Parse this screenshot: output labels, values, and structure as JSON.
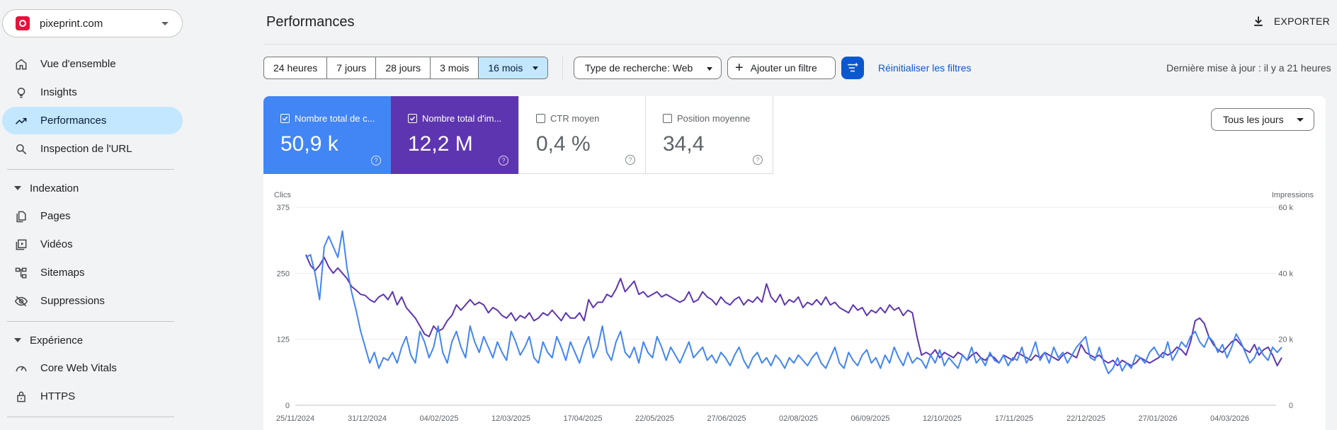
{
  "property": {
    "name": "pixeprint.com"
  },
  "nav": {
    "overview": "Vue d'ensemble",
    "insights": "Insights",
    "performance": "Performances",
    "url_inspection": "Inspection de l'URL",
    "indexing_section": "Indexation",
    "pages": "Pages",
    "videos": "Vidéos",
    "sitemaps": "Sitemaps",
    "removals": "Suppressions",
    "experience_section": "Expérience",
    "cwv": "Core Web Vitals",
    "https": "HTTPS"
  },
  "header": {
    "title": "Performances",
    "export_label": "EXPORTER"
  },
  "filters": {
    "ranges": [
      "24 heures",
      "7 jours",
      "28 jours",
      "3 mois",
      "16 mois"
    ],
    "selected_range": "16 mois",
    "search_type": "Type de recherche: Web",
    "add_filter": "Ajouter un filtre",
    "reset": "Réinitialiser les filtres",
    "last_update": "Dernière mise à jour : il y a 21 heures"
  },
  "metrics": {
    "clicks": {
      "label": "Nombre total de c...",
      "value": "50,9 k",
      "checked": true
    },
    "impressions": {
      "label": "Nombre total d'im...",
      "value": "12,2 M",
      "checked": true
    },
    "ctr": {
      "label": "CTR moyen",
      "value": "0,4 %",
      "checked": false
    },
    "position": {
      "label": "Position moyenne",
      "value": "34,4",
      "checked": false
    }
  },
  "granularity": {
    "selected": "Tous les jours"
  },
  "colors": {
    "clicks": "#4285f4",
    "impressions": "#5e35b1",
    "accent": "#0b57d0"
  },
  "chart_data": {
    "type": "line",
    "left_axis_label": "Clics",
    "right_axis_label": "Impressions",
    "left_ticks": [
      "0",
      "125",
      "250",
      "375"
    ],
    "right_ticks": [
      "0",
      "20 k",
      "40 k",
      "60 k"
    ],
    "ylim_left": [
      0,
      375
    ],
    "ylim_right": [
      0,
      60000
    ],
    "x_ticks": [
      "25/11/2024",
      "31/12/2024",
      "04/02/2025",
      "12/03/2025",
      "17/04/2025",
      "22/05/2025",
      "27/06/2025",
      "02/08/2025",
      "06/09/2025",
      "12/10/2025",
      "17/11/2025",
      "22/12/2025",
      "27/01/2026",
      "04/03/2026"
    ],
    "series": [
      {
        "name": "Clics",
        "color": "#4285f4",
        "axis": "left",
        "values": [
          280,
          285,
          250,
          200,
          300,
          320,
          300,
          280,
          330,
          260,
          215,
          180,
          140,
          110,
          80,
          100,
          70,
          90,
          85,
          100,
          80,
          110,
          130,
          95,
          80,
          140,
          120,
          90,
          110,
          150,
          100,
          80,
          120,
          140,
          110,
          90,
          150,
          120,
          100,
          130,
          110,
          90,
          120,
          100,
          85,
          140,
          120,
          95,
          110,
          130,
          90,
          80,
          120,
          100,
          90,
          130,
          110,
          85,
          120,
          100,
          80,
          110,
          130,
          90,
          110,
          150,
          100,
          85,
          120,
          140,
          100,
          90,
          110,
          80,
          120,
          100,
          90,
          130,
          110,
          85,
          110,
          95,
          80,
          100,
          120,
          90,
          100,
          110,
          85,
          95,
          80,
          100,
          90,
          75,
          95,
          110,
          85,
          70,
          90,
          100,
          80,
          90,
          75,
          95,
          85,
          70,
          90,
          80,
          95,
          85,
          75,
          90,
          100,
          80,
          70,
          90,
          110,
          80,
          70,
          100,
          85,
          75,
          95,
          105,
          80,
          90,
          70,
          95,
          80,
          110,
          90,
          75,
          100,
          80,
          90,
          85,
          70,
          95,
          80,
          105,
          75,
          90,
          80,
          70,
          95,
          85,
          110,
          80,
          90,
          75,
          100,
          85,
          80,
          95,
          75,
          90,
          85,
          110,
          80,
          95,
          120,
          85,
          100,
          80,
          110,
          90,
          100,
          80,
          95,
          110,
          120,
          130,
          90,
          85,
          110,
          80,
          60,
          70,
          90,
          65,
          80,
          70,
          95,
          90,
          80,
          100,
          110,
          95,
          90,
          120,
          85,
          100,
          120,
          110,
          130,
          140,
          120,
          110,
          130,
          120,
          100,
          115,
          90,
          110,
          135,
          120,
          100,
          80,
          90,
          110,
          95,
          85,
          110,
          100,
          110
        ]
      },
      {
        "name": "Impressions",
        "color": "#5e35b1",
        "axis": "left_scaled",
        "values": [
          285,
          265,
          255,
          265,
          280,
          262,
          250,
          260,
          250,
          240,
          225,
          218,
          210,
          208,
          200,
          195,
          205,
          210,
          200,
          215,
          190,
          205,
          185,
          175,
          165,
          150,
          135,
          130,
          150,
          140,
          145,
          160,
          170,
          190,
          180,
          190,
          200,
          190,
          195,
          190,
          175,
          185,
          180,
          170,
          165,
          175,
          160,
          170,
          165,
          175,
          160,
          165,
          175,
          170,
          180,
          170,
          160,
          175,
          165,
          165,
          175,
          160,
          200,
          185,
          195,
          195,
          210,
          205,
          220,
          240,
          215,
          225,
          235,
          210,
          215,
          205,
          210,
          215,
          205,
          210,
          205,
          200,
          195,
          200,
          215,
          195,
          200,
          215,
          205,
          200,
          190,
          205,
          195,
          190,
          200,
          205,
          190,
          200,
          195,
          205,
          195,
          230,
          205,
          195,
          210,
          190,
          200,
          195,
          205,
          185,
          195,
          190,
          200,
          190,
          205,
          190,
          195,
          185,
          180,
          175,
          190,
          180,
          185,
          170,
          180,
          175,
          185,
          175,
          190,
          180,
          185,
          170,
          180,
          175,
          130,
          95,
          100,
          95,
          105,
          90,
          100,
          95,
          90,
          100,
          95,
          85,
          95,
          100,
          90,
          85,
          95,
          90,
          80,
          95,
          90,
          85,
          100,
          95,
          90,
          85,
          95,
          90,
          100,
          95,
          90,
          85,
          95,
          100,
          95,
          90,
          115,
          100,
          95,
          90,
          95,
          85,
          80,
          85,
          75,
          85,
          80,
          75,
          80,
          90,
          85,
          80,
          85,
          90,
          100,
          95,
          100,
          110,
          105,
          95,
          120,
          160,
          165,
          155,
          130,
          115,
          105,
          100,
          110,
          120,
          125,
          115,
          105,
          100,
          115,
          95,
          105,
          110,
          95,
          75,
          90
        ]
      }
    ]
  }
}
